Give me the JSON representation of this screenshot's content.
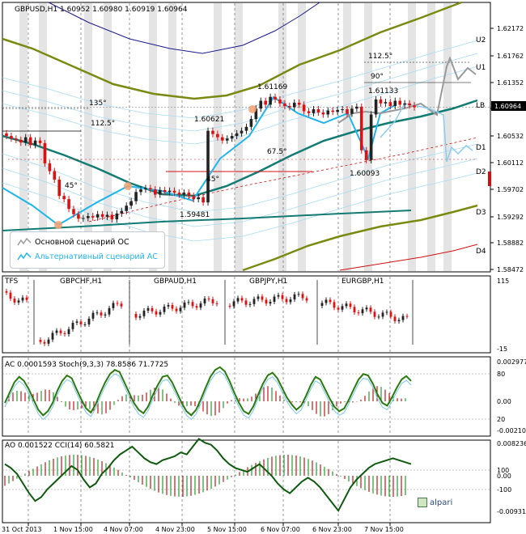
{
  "chart_data": [
    {
      "type": "line",
      "title": "GBPUSD,H1  1.60952 1.60980 1.60919 1.60964",
      "price_axis": [
        "1.62172",
        "1.61762",
        "1.61352",
        "1.60942",
        "1.60532",
        "1.60112",
        "1.59702",
        "1.59292",
        "1.58882",
        "1.58472"
      ],
      "current_price": "1.60964",
      "levels": [
        {
          "name": "U2",
          "price": 1.6196
        },
        {
          "name": "U1",
          "price": 1.6158
        },
        {
          "name": "LB",
          "price": 1.6096
        },
        {
          "name": "D1",
          "price": 1.6037
        },
        {
          "name": "D2",
          "price": 1.5993
        },
        {
          "name": "D3",
          "price": 1.5935
        },
        {
          "name": "D4",
          "price": 1.5877
        }
      ],
      "price_annotations": [
        "1.61169",
        "1.61133",
        "1.60621",
        "1.60093",
        "1.59481"
      ],
      "angle_annotations": [
        "135°",
        "112.5°",
        "112.5°",
        "90°",
        "67.5°",
        "45°",
        "45°"
      ],
      "close": [
        1.6052,
        1.6048,
        1.6046,
        1.6042,
        1.605,
        1.6038,
        1.6045,
        1.6041,
        1.601,
        1.5998,
        1.5985,
        1.596,
        1.5955,
        1.594,
        1.5932,
        1.5925,
        1.5926,
        1.5929,
        1.5927,
        1.5932,
        1.5928,
        1.5931,
        1.5924,
        1.5933,
        1.5937,
        1.5945,
        1.5952,
        1.5966,
        1.597,
        1.5972,
        1.597,
        1.5962,
        1.5969,
        1.5966,
        1.5968,
        1.5965,
        1.5962,
        1.5965,
        1.596,
        1.5955,
        1.5958,
        1.595,
        1.606,
        1.6055,
        1.605,
        1.6045,
        1.6048,
        1.6052,
        1.6056,
        1.606,
        1.6066,
        1.6078,
        1.6094,
        1.6106,
        1.61,
        1.6112,
        1.6108,
        1.6102,
        1.6098,
        1.6096,
        1.6103,
        1.61,
        1.609,
        1.6087,
        1.6093,
        1.6088,
        1.6085,
        1.6091,
        1.6089,
        1.6092,
        1.6093,
        1.6086,
        1.6094,
        1.6097,
        1.603,
        1.6015,
        1.6085,
        1.6108,
        1.6102,
        1.6104,
        1.6098,
        1.6106,
        1.61,
        1.6102,
        1.6099,
        1.6096
      ]
    },
    {
      "type": "line",
      "title": "TFS",
      "subcharts": [
        "GBPCHF,H1",
        "GBPAUD,H1",
        "GBPJPY,H1",
        "EURGBP,H1"
      ],
      "yaxis": [
        "115",
        "-15"
      ]
    },
    {
      "type": "bar",
      "title": "AC 0.0001593  Stoch(9,3,3) 78.8586 71.7725",
      "yaxis": [
        "0.002977",
        "80",
        "0.00",
        "20",
        "-0.002107"
      ],
      "stoch": [
        40,
        55,
        70,
        78,
        72,
        60,
        45,
        30,
        22,
        28,
        40,
        58,
        72,
        80,
        76,
        60,
        45,
        32,
        26,
        38,
        55,
        70,
        82,
        88,
        85,
        70,
        55,
        40,
        30,
        25,
        35,
        52,
        66,
        78,
        80,
        70,
        55,
        40,
        28,
        22,
        30,
        45,
        62,
        78,
        88,
        92,
        86,
        72,
        55,
        40,
        28,
        24,
        35,
        52,
        68,
        80,
        84,
        76,
        62,
        48,
        38,
        30,
        36,
        50,
        66,
        78,
        74,
        60,
        46,
        34,
        28,
        32,
        45,
        60,
        74,
        82,
        80,
        68,
        52,
        40,
        36,
        48,
        62,
        74,
        79,
        72
      ]
    },
    {
      "type": "bar",
      "title": "AO 0.001522  CCI(14) 60.5821",
      "yaxis": [
        "0.008236",
        "100",
        "0.00",
        "-100",
        "-0.009316"
      ],
      "cci": [
        60,
        40,
        10,
        -40,
        -90,
        -130,
        -110,
        -70,
        -40,
        -10,
        20,
        50,
        30,
        -20,
        -60,
        -40,
        10,
        40,
        80,
        110,
        130,
        150,
        120,
        90,
        70,
        60,
        80,
        90,
        100,
        120,
        110,
        150,
        190,
        170,
        160,
        130,
        90,
        60,
        40,
        30,
        20,
        40,
        60,
        30,
        0,
        -40,
        -70,
        -90,
        -60,
        -30,
        -10,
        -30,
        -60,
        -100,
        -140,
        -180,
        -120,
        -60,
        -20,
        10,
        40,
        60,
        70,
        80,
        90,
        80,
        70,
        60
      ]
    }
  ],
  "time_axis": [
    "31 Oct 2013",
    "1 Nov 15:00",
    "4 Nov 07:00",
    "4 Nov 23:00",
    "5 Nov 15:00",
    "6 Nov 07:00",
    "6 Nov 23:00",
    "7 Nov 15:00"
  ],
  "legend": {
    "main_label": "Основной сценарий ОС",
    "alt_label": "Альтернативный сценарий АС"
  },
  "brand": "alpari",
  "colors": {
    "cyan": "#1eb4ee",
    "teal": "#127b73",
    "olive": "#7a8a10",
    "navy": "#1a1a8c",
    "bull": "#222222",
    "bear": "#e01010",
    "stoch": "#2a7a10",
    "cci": "#0f5a0f",
    "grey": "#999999"
  }
}
